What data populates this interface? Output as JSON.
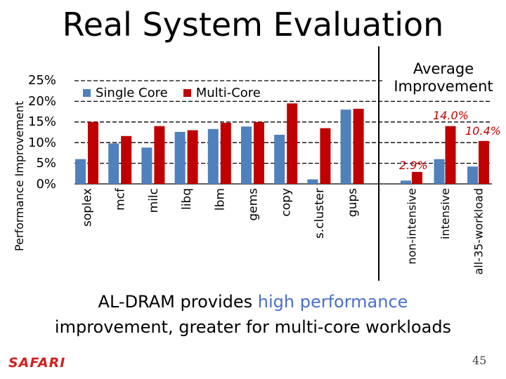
{
  "slide": {
    "title": "Real System Evaluation",
    "conclusion_line1_pre": "AL-DRAM provides ",
    "conclusion_highlight": "high performance",
    "conclusion_line2": "improvement, greater for multi-core workloads",
    "logo": "SAFARI",
    "page_number": "45"
  },
  "colors": {
    "single_core": "#4f81bd",
    "multi_core": "#c00000",
    "highlight": "#4a6fcc"
  },
  "chart_data": [
    {
      "type": "bar",
      "ylabel": "Performance Improvement",
      "ylim": [
        0,
        25
      ],
      "ytick_labels": [
        "25%",
        "20%",
        "15%",
        "10%",
        "5%",
        "0%"
      ],
      "grid": true,
      "legend_position": "top-left",
      "categories": [
        "soplex",
        "mcf",
        "milc",
        "libq",
        "lbm",
        "gems",
        "copy",
        "s.cluster",
        "gups"
      ],
      "series": [
        {
          "name": "Single Core",
          "values": [
            6.0,
            9.8,
            8.8,
            12.6,
            13.3,
            13.9,
            11.9,
            1.1,
            18.0
          ]
        },
        {
          "name": "Multi-Core",
          "values": [
            15.0,
            11.6,
            14.0,
            13.0,
            14.8,
            15.0,
            19.5,
            13.5,
            18.2
          ]
        }
      ]
    },
    {
      "type": "bar",
      "title": "Average Improvement",
      "ylim": [
        0,
        25
      ],
      "categories": [
        "non-intensive",
        "intensive",
        "all-35-workload"
      ],
      "series": [
        {
          "name": "Single Core",
          "values": [
            0.8,
            6.0,
            4.2
          ]
        },
        {
          "name": "Multi-Core",
          "values": [
            2.9,
            14.0,
            10.4
          ]
        }
      ],
      "annotations": [
        "2.9%",
        "14.0%",
        "10.4%"
      ]
    }
  ]
}
